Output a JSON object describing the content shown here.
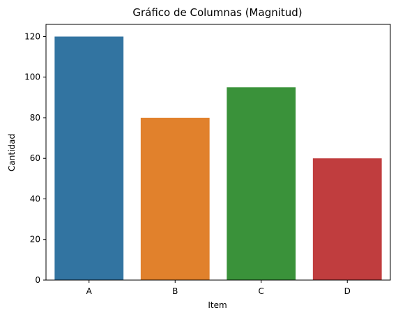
{
  "chart_data": {
    "type": "bar",
    "title": "Gráfico de Columnas (Magnitud)",
    "xlabel": "Item",
    "ylabel": "Cantidad",
    "categories": [
      "A",
      "B",
      "C",
      "D"
    ],
    "values": [
      120,
      80,
      95,
      60
    ],
    "colors": [
      "#3274a1",
      "#e1812c",
      "#3a923a",
      "#c03d3e"
    ],
    "ylim": [
      0,
      126
    ],
    "yticks": [
      0,
      20,
      40,
      60,
      80,
      100,
      120
    ],
    "grid": false,
    "legend": "none"
  }
}
